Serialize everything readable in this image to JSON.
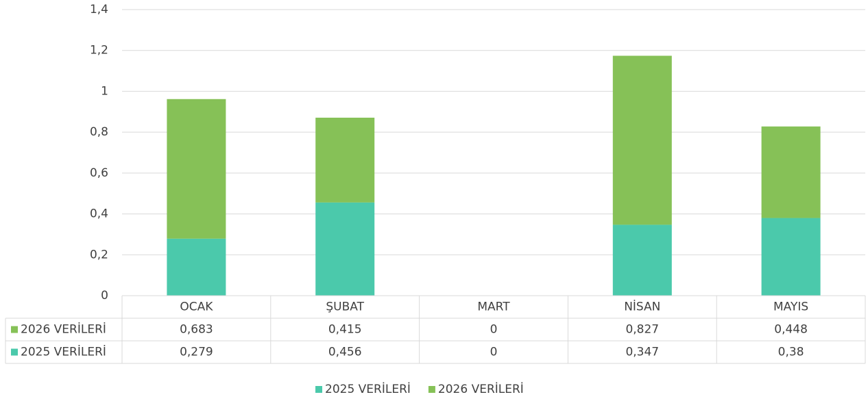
{
  "chart_data": {
    "type": "stacked_bar",
    "categories": [
      "OCAK",
      "ŞUBAT",
      "MART",
      "NİSAN",
      "MAYIS"
    ],
    "series": [
      {
        "name": "2025 VERİLERİ",
        "color": "#4bc9ab",
        "values": [
          0.279,
          0.456,
          0,
          0.347,
          0.38
        ],
        "value_labels": [
          "0,279",
          "0,456",
          "0",
          "0,347",
          "0,38"
        ]
      },
      {
        "name": "2026 VERİLERİ",
        "color": "#86c157",
        "values": [
          0.683,
          0.415,
          0,
          0.827,
          0.448
        ],
        "value_labels": [
          "0,683",
          "0,415",
          "0",
          "0,827",
          "0,448"
        ]
      }
    ],
    "ylim": [
      0,
      1.4
    ],
    "yticks": [
      0,
      {
        "value": 0.2,
        "label": "0,2"
      },
      {
        "value": 0.4,
        "label": "0,4"
      },
      {
        "value": 0.6,
        "label": "0,6"
      },
      {
        "value": 0.8,
        "label": "0,8"
      },
      1,
      {
        "value": 1.2,
        "label": "1,2"
      },
      {
        "value": 1.4,
        "label": "1,4"
      }
    ],
    "grid": true,
    "legend": "bottom"
  }
}
